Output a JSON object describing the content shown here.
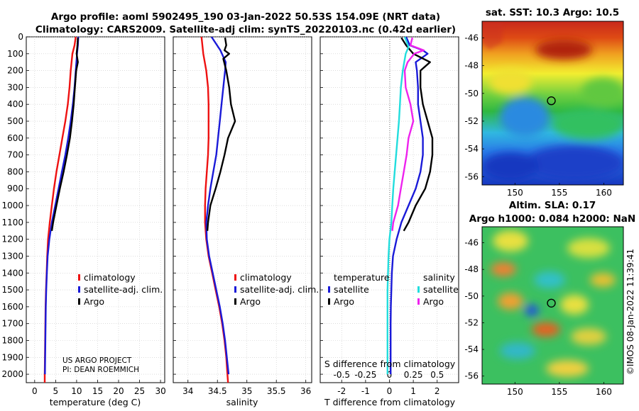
{
  "title": {
    "line1": "Argo profile: aoml 5902495_190 03-Jan-2022 50.53S 154.09E (NRT data)",
    "line2": "Climatology: CARS2009. Satellite-adj clim: synTS_20220103.nc (0.42d earlier)"
  },
  "colors": {
    "climatology": "#ee1111",
    "satellite_adj": "#1a1ad8",
    "argo": "#000000",
    "sal_satellite": "#22dddd",
    "sal_argo": "#ee22ee",
    "grid": "#c8c8c8"
  },
  "credit": {
    "line1": "US ARGO PROJECT",
    "line2": "PI: DEAN ROEMMICH"
  },
  "timestamp": "©IMOS 08-Jan-2022 11:39:41",
  "chart_data": [
    {
      "type": "line",
      "name": "temperature-panel",
      "xlabel": "temperature (deg C)",
      "xlim": [
        -2,
        31
      ],
      "xticks": [
        0,
        5,
        10,
        15,
        20,
        25,
        30
      ],
      "ylim": [
        2050,
        0
      ],
      "yticks": [
        0,
        100,
        200,
        300,
        400,
        500,
        600,
        700,
        800,
        900,
        1000,
        1100,
        1200,
        1300,
        1400,
        1500,
        1600,
        1700,
        1800,
        1900,
        2000
      ],
      "legend": [
        "climatology",
        "satellite-adj. clim.",
        "Argo"
      ],
      "series": [
        {
          "name": "climatology",
          "color_key": "climatology",
          "depth": [
            0,
            50,
            100,
            200,
            300,
            400,
            500,
            600,
            700,
            800,
            900,
            1000,
            1100,
            1200,
            1300,
            1400,
            1500,
            1600,
            1700,
            1800,
            1900,
            2000,
            2050
          ],
          "values": [
            9.8,
            9.5,
            9.0,
            8.6,
            8.3,
            7.9,
            7.3,
            6.6,
            5.9,
            5.2,
            4.6,
            4.1,
            3.6,
            3.2,
            3.0,
            2.85,
            2.7,
            2.6,
            2.55,
            2.5,
            2.45,
            2.4,
            2.4
          ]
        },
        {
          "name": "satellite-adj. clim.",
          "color_key": "satellite_adj",
          "depth": [
            0,
            50,
            100,
            200,
            300,
            400,
            500,
            600,
            700,
            800,
            900,
            1000,
            1100,
            1200,
            1300,
            1400,
            1500,
            1600,
            1700,
            1800,
            1900,
            2000
          ],
          "values": [
            10.4,
            10.3,
            10.1,
            9.8,
            9.5,
            9.1,
            8.6,
            8.0,
            7.3,
            6.5,
            5.7,
            4.9,
            4.1,
            3.5,
            3.1,
            2.9,
            2.75,
            2.65,
            2.6,
            2.55,
            2.5,
            2.45
          ]
        },
        {
          "name": "Argo",
          "color_key": "argo",
          "depth": [
            5,
            50,
            100,
            150,
            200,
            300,
            400,
            500,
            600,
            700,
            800,
            900,
            1000,
            1100,
            1150
          ],
          "values": [
            10.3,
            10.2,
            10.0,
            10.3,
            9.9,
            9.6,
            9.3,
            8.9,
            8.4,
            7.7,
            6.9,
            6.0,
            5.2,
            4.4,
            4.1
          ]
        }
      ]
    },
    {
      "type": "line",
      "name": "salinity-panel",
      "xlabel": "salinity",
      "xlim": [
        33.75,
        36.1
      ],
      "xticks": [
        34,
        34.5,
        35,
        35.5,
        36
      ],
      "ylim": [
        2050,
        0
      ],
      "legend": [
        "climatology",
        "satellite-adj. clim.",
        "Argo"
      ],
      "series": [
        {
          "name": "climatology",
          "color_key": "climatology",
          "depth": [
            0,
            100,
            200,
            300,
            400,
            500,
            600,
            700,
            800,
            900,
            1000,
            1100,
            1200,
            1300,
            1400,
            1500,
            1600,
            1700,
            1800,
            1900,
            2000,
            2050
          ],
          "values": [
            34.23,
            34.26,
            34.31,
            34.34,
            34.35,
            34.35,
            34.35,
            34.34,
            34.32,
            34.3,
            34.29,
            34.29,
            34.31,
            34.35,
            34.41,
            34.47,
            34.53,
            34.58,
            34.62,
            34.65,
            34.67,
            34.68
          ]
        },
        {
          "name": "satellite-adj. clim.",
          "color_key": "satellite_adj",
          "depth": [
            0,
            80,
            150,
            200,
            300,
            400,
            500,
            600,
            700,
            800,
            900,
            1000,
            1100,
            1200,
            1300,
            1400,
            1500,
            1600,
            1700,
            1800,
            1900,
            2000
          ],
          "values": [
            34.4,
            34.55,
            34.64,
            34.63,
            34.6,
            34.57,
            34.54,
            34.51,
            34.48,
            34.43,
            34.38,
            34.34,
            34.31,
            34.32,
            34.36,
            34.42,
            34.48,
            34.54,
            34.59,
            34.63,
            34.66,
            34.69
          ]
        },
        {
          "name": "Argo",
          "color_key": "argo",
          "depth": [
            5,
            50,
            80,
            100,
            130,
            200,
            300,
            400,
            500,
            600,
            700,
            800,
            900,
            1000,
            1100,
            1150
          ],
          "values": [
            34.63,
            34.65,
            34.62,
            34.7,
            34.6,
            34.65,
            34.7,
            34.73,
            34.8,
            34.68,
            34.62,
            34.55,
            34.47,
            34.38,
            34.34,
            34.33
          ]
        }
      ]
    },
    {
      "type": "line",
      "name": "difference-panel",
      "xlabel": "T difference from climatology",
      "xlabel_top": "S difference from climatology",
      "xlim": [
        -2.9,
        2.9
      ],
      "xticks": [
        -2,
        -1,
        0,
        1,
        2
      ],
      "xticks_top_labels": [
        "-0.5",
        "-0.25",
        "0",
        "0.25",
        "0.5"
      ],
      "ylim": [
        2050,
        0
      ],
      "legend": {
        "temperature": [
          "satellite",
          "Argo"
        ],
        "salinity": [
          "satellite",
          "Argo"
        ],
        "temperature_title": "temperature",
        "salinity_title": "salinity"
      },
      "series": [
        {
          "name": "temperature satellite",
          "color_key": "satellite_adj",
          "depth": [
            0,
            50,
            80,
            100,
            150,
            200,
            300,
            400,
            500,
            600,
            700,
            800,
            900,
            1000,
            1100,
            1200,
            1300,
            1400,
            1500,
            1600,
            1700,
            1800,
            1900,
            2000
          ],
          "values": [
            0.7,
            0.85,
            1.4,
            1.6,
            1.1,
            1.15,
            1.2,
            1.2,
            1.3,
            1.4,
            1.4,
            1.3,
            1.1,
            0.8,
            0.5,
            0.3,
            0.15,
            0.1,
            0.08,
            0.06,
            0.05,
            0.05,
            0.05,
            0.05
          ]
        },
        {
          "name": "temperature Argo",
          "color_key": "argo",
          "depth": [
            5,
            50,
            100,
            150,
            200,
            300,
            400,
            500,
            600,
            700,
            800,
            900,
            1000,
            1100,
            1150
          ],
          "values": [
            0.5,
            0.7,
            1.0,
            1.7,
            1.3,
            1.3,
            1.4,
            1.6,
            1.8,
            1.8,
            1.7,
            1.5,
            1.1,
            0.8,
            0.6
          ]
        },
        {
          "name": "salinity satellite",
          "color_key": "sal_satellite",
          "depth": [
            0,
            60,
            100,
            200,
            300,
            400,
            500,
            600,
            700,
            800,
            900,
            1000,
            1100,
            1200,
            1300,
            1400,
            1500,
            1600,
            1700,
            1800,
            1900,
            2000
          ],
          "values": [
            0.16,
            0.2,
            0.17,
            0.14,
            0.12,
            0.11,
            0.1,
            0.085,
            0.07,
            0.055,
            0.04,
            0.03,
            0.02,
            0.0,
            -0.01,
            -0.015,
            -0.02,
            -0.02,
            -0.02,
            -0.02,
            -0.02,
            -0.02
          ]
        },
        {
          "name": "salinity Argo",
          "color_key": "sal_argo",
          "depth": [
            5,
            50,
            80,
            100,
            150,
            200,
            300,
            400,
            500,
            600,
            700,
            800,
            900,
            1000,
            1100,
            1150
          ],
          "values": [
            0.24,
            0.22,
            0.36,
            0.26,
            0.19,
            0.16,
            0.17,
            0.22,
            0.25,
            0.2,
            0.18,
            0.15,
            0.12,
            0.09,
            0.04,
            0.03
          ]
        }
      ]
    },
    {
      "type": "heatmap",
      "name": "sst-map",
      "title": "sat. SST: 10.3 Argo: 10.5",
      "xlim": [
        146.3,
        162.2
      ],
      "ylim": [
        -56.6,
        -44.8
      ],
      "xticks": [
        150,
        155,
        160
      ],
      "yticks": [
        -46,
        -48,
        -50,
        -52,
        -54,
        -56
      ],
      "float_position": [
        154.09,
        -50.53
      ]
    },
    {
      "type": "heatmap",
      "name": "sla-map",
      "title_line1": "Altim. SLA: 0.17",
      "title_line2": "Argo h1000: 0.084 h2000: NaN",
      "xlim": [
        146.3,
        162.2
      ],
      "ylim": [
        -56.6,
        -44.8
      ],
      "xticks": [
        150,
        155,
        160
      ],
      "yticks": [
        -46,
        -48,
        -50,
        -52,
        -54,
        -56
      ],
      "float_position": [
        154.09,
        -50.53
      ]
    }
  ]
}
